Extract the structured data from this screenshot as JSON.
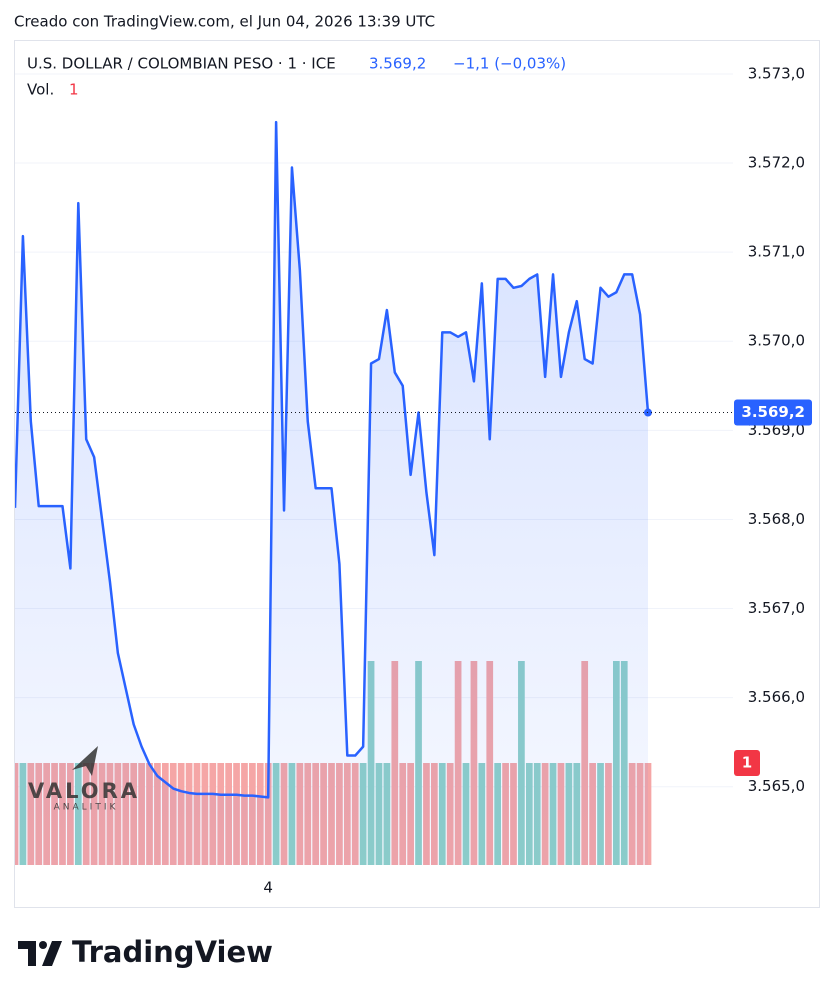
{
  "header": "Creado con TradingView.com, el Jun 04, 2026 13:39 UTC",
  "footer": "TradingView",
  "watermark": {
    "name": "VALORA",
    "sub": "ANALITIK"
  },
  "chart_data": {
    "type": "line",
    "legend": {
      "symbol": "U.S. DOLLAR / COLOMBIAN PESO · 1 · ICE",
      "price": "3.569,2",
      "change": "−1,1 (−0,03%)"
    },
    "categories": [
      null,
      null,
      null,
      null,
      null,
      null,
      null,
      null,
      null,
      null,
      null,
      null,
      null,
      null,
      null,
      null,
      null,
      null,
      null,
      null,
      null,
      null,
      null,
      null,
      null,
      null,
      null,
      null,
      null,
      null,
      null,
      null,
      "4",
      null,
      null,
      null,
      null,
      null,
      null,
      null,
      null,
      null,
      null,
      null,
      null,
      null,
      null,
      null,
      null,
      null,
      null,
      null,
      null,
      null,
      null,
      null,
      null,
      null,
      null,
      null,
      null,
      null,
      null,
      null,
      null,
      null,
      null,
      null,
      null,
      null,
      null,
      null,
      null,
      null,
      null,
      null,
      null,
      null,
      null,
      null,
      null
    ],
    "series": [
      {
        "name": "U.S. DOLLAR / COLOMBIAN PESO",
        "color": "#2962ff",
        "values": [
          3568.13,
          3571.18,
          3569.1,
          3568.15,
          3568.15,
          3568.15,
          3568.15,
          3567.45,
          3571.55,
          3568.9,
          3568.7,
          3568.0,
          3567.3,
          3566.5,
          3566.1,
          3565.7,
          3565.45,
          3565.25,
          3565.12,
          3565.05,
          3564.98,
          3564.95,
          3564.93,
          3564.92,
          3564.92,
          3564.92,
          3564.91,
          3564.91,
          3564.91,
          3564.9,
          3564.9,
          3564.89,
          3564.88,
          3572.46,
          3568.1,
          3571.95,
          3570.8,
          3569.1,
          3568.35,
          3568.35,
          3568.35,
          3567.5,
          3565.35,
          3565.35,
          3565.45,
          3569.75,
          3569.8,
          3570.35,
          3569.65,
          3569.5,
          3568.5,
          3569.2,
          3568.3,
          3567.6,
          3570.1,
          3570.1,
          3570.05,
          3570.1,
          3569.55,
          3570.65,
          3568.9,
          3570.7,
          3570.7,
          3570.6,
          3570.62,
          3570.7,
          3570.75,
          3569.6,
          3570.75,
          3569.6,
          3570.1,
          3570.45,
          3569.8,
          3569.75,
          3570.6,
          3570.5,
          3570.55,
          3570.75,
          3570.75,
          3570.3,
          3569.2
        ]
      }
    ],
    "volume": {
      "name": "Vol.",
      "up_color": "#8fd0c8",
      "down_color": "#f5a6a6",
      "values": [
        1,
        1,
        1,
        1,
        1,
        1,
        1,
        1,
        1,
        1,
        1,
        1,
        1,
        1,
        1,
        1,
        1,
        1,
        1,
        1,
        1,
        1,
        1,
        1,
        1,
        1,
        1,
        1,
        1,
        1,
        1,
        1,
        1,
        1,
        1,
        1,
        1,
        1,
        1,
        1,
        1,
        1,
        1,
        1,
        1,
        2,
        1,
        1,
        2,
        1,
        1,
        2,
        1,
        1,
        1,
        1,
        2,
        1,
        2,
        1,
        2,
        1,
        1,
        1,
        2,
        1,
        1,
        1,
        1,
        1,
        1,
        1,
        2,
        1,
        1,
        1,
        2,
        2,
        1,
        1,
        1
      ]
    },
    "last_price": {
      "value": 3569.2,
      "label": "3.569,2"
    },
    "ylim": [
      3563.65,
      3573.37
    ],
    "yticks": [
      {
        "value": 3565,
        "label": "3.565,0"
      },
      {
        "value": 3566,
        "label": "3.566,0"
      },
      {
        "value": 3567,
        "label": "3.567,0"
      },
      {
        "value": 3568,
        "label": "3.568,0"
      },
      {
        "value": 3569,
        "label": "3.569,0"
      },
      {
        "value": 3570,
        "label": "3.570,0"
      },
      {
        "value": 3571,
        "label": "3.571,0"
      },
      {
        "value": 3572,
        "label": "3.572,0"
      },
      {
        "value": 3573,
        "label": "3.573,0"
      }
    ],
    "grid": true
  }
}
